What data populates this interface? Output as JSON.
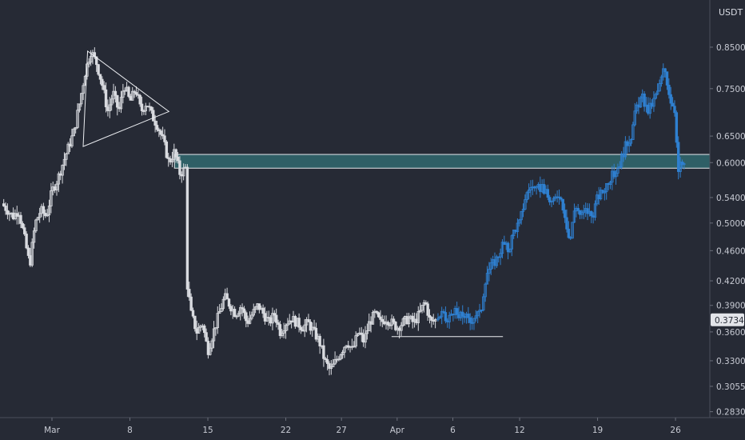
{
  "chart_data": {
    "type": "candlestick",
    "title": "",
    "ylabel": "USDT",
    "xlabel": "",
    "y_scale": "log",
    "ylim": [
      0.278,
      0.98
    ],
    "y_ticks": [
      0.283,
      0.3055,
      0.33,
      0.36,
      0.39,
      0.42,
      0.46,
      0.5,
      0.54,
      0.6,
      0.65,
      0.75,
      0.85
    ],
    "y_tick_labels": [
      "0.2830",
      "0.3055",
      "0.3300",
      "0.3600",
      "0.3900",
      "0.4200",
      "0.4600",
      "0.5000",
      "0.5400",
      "0.6000",
      "0.6500",
      "0.7500",
      "0.8500"
    ],
    "x_ticks": [
      {
        "label": "Mar",
        "day": 1
      },
      {
        "label": "8",
        "day": 8
      },
      {
        "label": "15",
        "day": 15
      },
      {
        "label": "22",
        "day": 22
      },
      {
        "label": "27",
        "day": 27
      },
      {
        "label": "Apr",
        "day": 32
      },
      {
        "label": "6",
        "day": 37
      },
      {
        "label": "12",
        "day": 43
      },
      {
        "label": "19",
        "day": 50
      },
      {
        "label": "26",
        "day": 57
      }
    ],
    "last_price": 0.3734,
    "last_price_label": "0.3734",
    "grid": false,
    "historical_color": "#d9dbe0",
    "projection_color": "#2f80d1",
    "zone_color": "#2f5f66",
    "historical_path": [
      [
        -3.5,
        0.53
      ],
      [
        -2.5,
        0.51
      ],
      [
        -2.0,
        0.52
      ],
      [
        -1.5,
        0.48
      ],
      [
        -1.0,
        0.44
      ],
      [
        -0.5,
        0.5
      ],
      [
        0.0,
        0.52
      ],
      [
        0.5,
        0.51
      ],
      [
        1.0,
        0.55
      ],
      [
        1.5,
        0.57
      ],
      [
        2.0,
        0.6
      ],
      [
        2.5,
        0.63
      ],
      [
        3.0,
        0.66
      ],
      [
        3.5,
        0.72
      ],
      [
        4.0,
        0.79
      ],
      [
        4.5,
        0.84
      ],
      [
        5.0,
        0.81
      ],
      [
        5.5,
        0.76
      ],
      [
        6.0,
        0.7
      ],
      [
        6.5,
        0.74
      ],
      [
        7.0,
        0.7
      ],
      [
        7.5,
        0.76
      ],
      [
        8.0,
        0.72
      ],
      [
        8.5,
        0.75
      ],
      [
        9.0,
        0.7
      ],
      [
        9.5,
        0.72
      ],
      [
        10.0,
        0.69
      ],
      [
        10.5,
        0.67
      ],
      [
        11.0,
        0.64
      ],
      [
        11.5,
        0.6
      ],
      [
        12.0,
        0.62
      ],
      [
        12.5,
        0.58
      ],
      [
        13.0,
        0.59
      ],
      [
        13.1,
        0.42
      ],
      [
        13.5,
        0.38
      ],
      [
        14.0,
        0.36
      ],
      [
        14.5,
        0.37
      ],
      [
        15.0,
        0.34
      ],
      [
        15.5,
        0.36
      ],
      [
        16.0,
        0.38
      ],
      [
        16.5,
        0.4
      ],
      [
        17.0,
        0.39
      ],
      [
        17.5,
        0.38
      ],
      [
        18.0,
        0.39
      ],
      [
        18.5,
        0.37
      ],
      [
        19.0,
        0.38
      ],
      [
        19.5,
        0.39
      ],
      [
        20.0,
        0.38
      ],
      [
        20.5,
        0.37
      ],
      [
        21.0,
        0.38
      ],
      [
        21.5,
        0.36
      ],
      [
        22.0,
        0.37
      ],
      [
        22.5,
        0.375
      ],
      [
        23.0,
        0.37
      ],
      [
        23.5,
        0.365
      ],
      [
        24.0,
        0.37
      ],
      [
        24.5,
        0.36
      ],
      [
        25.0,
        0.35
      ],
      [
        25.5,
        0.33
      ],
      [
        26.0,
        0.32
      ],
      [
        26.5,
        0.33
      ],
      [
        27.0,
        0.34
      ],
      [
        27.5,
        0.35
      ],
      [
        28.0,
        0.34
      ],
      [
        28.5,
        0.36
      ],
      [
        29.0,
        0.35
      ],
      [
        29.5,
        0.37
      ],
      [
        30.0,
        0.38
      ],
      [
        30.5,
        0.37
      ],
      [
        31.0,
        0.375
      ],
      [
        31.5,
        0.37
      ],
      [
        32.0,
        0.365
      ],
      [
        32.5,
        0.37
      ],
      [
        33.0,
        0.375
      ],
      [
        33.5,
        0.37
      ],
      [
        34.0,
        0.38
      ],
      [
        34.5,
        0.395
      ],
      [
        35.0,
        0.37
      ],
      [
        35.5,
        0.3734
      ]
    ],
    "projection_path": [
      [
        35.5,
        0.3734
      ],
      [
        36.0,
        0.38
      ],
      [
        36.5,
        0.37
      ],
      [
        37.0,
        0.385
      ],
      [
        37.5,
        0.375
      ],
      [
        38.0,
        0.38
      ],
      [
        38.5,
        0.37
      ],
      [
        39.0,
        0.38
      ],
      [
        39.5,
        0.38
      ],
      [
        40.0,
        0.43
      ],
      [
        40.5,
        0.44
      ],
      [
        41.0,
        0.45
      ],
      [
        41.5,
        0.47
      ],
      [
        42.0,
        0.46
      ],
      [
        42.5,
        0.49
      ],
      [
        43.0,
        0.5
      ],
      [
        43.5,
        0.54
      ],
      [
        44.0,
        0.56
      ],
      [
        44.5,
        0.55
      ],
      [
        45.0,
        0.56
      ],
      [
        45.5,
        0.54
      ],
      [
        46.0,
        0.53
      ],
      [
        46.5,
        0.55
      ],
      [
        47.0,
        0.52
      ],
      [
        47.5,
        0.47
      ],
      [
        48.0,
        0.53
      ],
      [
        48.5,
        0.51
      ],
      [
        49.0,
        0.52
      ],
      [
        49.5,
        0.51
      ],
      [
        50.0,
        0.54
      ],
      [
        50.5,
        0.55
      ],
      [
        51.0,
        0.57
      ],
      [
        51.5,
        0.58
      ],
      [
        52.0,
        0.6
      ],
      [
        52.5,
        0.63
      ],
      [
        53.0,
        0.65
      ],
      [
        53.5,
        0.71
      ],
      [
        54.0,
        0.73
      ],
      [
        54.5,
        0.7
      ],
      [
        55.0,
        0.72
      ],
      [
        55.5,
        0.75
      ],
      [
        56.0,
        0.8
      ],
      [
        56.5,
        0.73
      ],
      [
        57.0,
        0.7
      ],
      [
        57.2,
        0.58
      ],
      [
        57.5,
        0.6
      ],
      [
        57.8,
        0.59
      ]
    ],
    "annotations": {
      "triangle": [
        [
          4.2,
          0.84
        ],
        [
          11.5,
          0.7
        ],
        [
          3.8,
          0.63
        ]
      ],
      "resistance_zone": {
        "x0": 12.0,
        "x1": 60.0,
        "y_low": 0.59,
        "y_high": 0.615
      },
      "support_line": {
        "x0": 31.5,
        "x1": 41.5,
        "y": 0.355
      }
    }
  }
}
